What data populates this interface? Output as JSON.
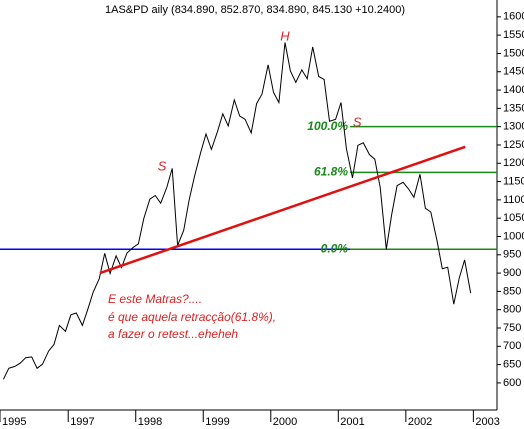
{
  "chart_data": {
    "type": "line",
    "title": "1AS&PD aily (834.890, 852.870, 834.890, 845.130 +10.2400)",
    "xlim": [
      1995.99,
      2003.35
    ],
    "xticks": [
      {
        "value": 1995.99,
        "label": "1995"
      },
      1997,
      1998,
      1999,
      2000,
      2001,
      2002,
      2003
    ],
    "ylim": [
      526,
      1646
    ],
    "yticks": [
      600,
      650,
      700,
      750,
      800,
      850,
      900,
      950,
      1000,
      1050,
      1100,
      1150,
      1200,
      1250,
      1300,
      1350,
      1400,
      1450,
      1500,
      1550,
      1600
    ],
    "series": [
      {
        "color": "#000000",
        "x": [
          1996.04,
          1996.12,
          1996.21,
          1996.29,
          1996.37,
          1996.46,
          1996.54,
          1996.62,
          1996.71,
          1996.79,
          1996.87,
          1996.96,
          1997.04,
          1997.12,
          1997.21,
          1997.29,
          1997.37,
          1997.46,
          1997.54,
          1997.62,
          1997.71,
          1997.79,
          1997.87,
          1997.96,
          1998.04,
          1998.12,
          1998.21,
          1998.29,
          1998.37,
          1998.46,
          1998.54,
          1998.62,
          1998.71,
          1998.79,
          1998.87,
          1998.96,
          1999.04,
          1999.12,
          1999.21,
          1999.29,
          1999.37,
          1999.46,
          1999.54,
          1999.62,
          1999.71,
          1999.79,
          1999.87,
          1999.96,
          2000.04,
          2000.12,
          2000.21,
          2000.29,
          2000.37,
          2000.46,
          2000.54,
          2000.62,
          2000.71,
          2000.79,
          2000.87,
          2000.96,
          2001.04,
          2001.12,
          2001.21,
          2001.29,
          2001.37,
          2001.46,
          2001.54,
          2001.62,
          2001.71,
          2001.79,
          2001.87,
          2001.96,
          2002.04,
          2002.12,
          2002.21,
          2002.29,
          2002.37,
          2002.46,
          2002.54,
          2002.62,
          2002.71,
          2002.79,
          2002.87,
          2002.96
        ],
        "values": [
          610,
          640,
          645,
          654,
          669,
          671,
          640,
          651,
          687,
          705,
          757,
          741,
          786,
          791,
          757,
          801,
          848,
          885,
          954,
          899,
          947,
          915,
          955,
          970,
          980,
          1049,
          1102,
          1112,
          1091,
          1134,
          1186,
          975,
          1017,
          1099,
          1164,
          1229,
          1280,
          1238,
          1286,
          1335,
          1302,
          1373,
          1329,
          1320,
          1283,
          1363,
          1389,
          1469,
          1394,
          1366,
          1530,
          1452,
          1421,
          1455,
          1431,
          1518,
          1437,
          1429,
          1315,
          1320,
          1366,
          1240,
          1160,
          1249,
          1256,
          1224,
          1211,
          1134,
          965,
          1060,
          1139,
          1148,
          1130,
          1107,
          1170,
          1077,
          1067,
          990,
          912,
          916,
          815,
          886,
          936,
          845
        ]
      }
    ],
    "support": {
      "level": 965,
      "color": "#0000ff"
    },
    "trendline": {
      "x": [
        1997.47,
        2002.88
      ],
      "values": [
        900,
        1245
      ],
      "color": "#e01010"
    },
    "levels": [
      {
        "price": 1300,
        "text": "100.0%"
      },
      {
        "price": 1175,
        "text": "61.8%"
      },
      {
        "price": 965,
        "text": "0.0%"
      }
    ],
    "level_color": "#1a8a1a",
    "peaks": [
      {
        "text": "H",
        "x": 2000.21,
        "y": 1545
      },
      {
        "text": "S",
        "x": 1998.39,
        "y": 1190
      },
      {
        "text": "S",
        "x": 2001.28,
        "y": 1310
      }
    ],
    "comment": [
      "E este Matras?....",
      "é que aquela retracção(61.8%),",
      "a fazer o retest...eheheh"
    ]
  }
}
